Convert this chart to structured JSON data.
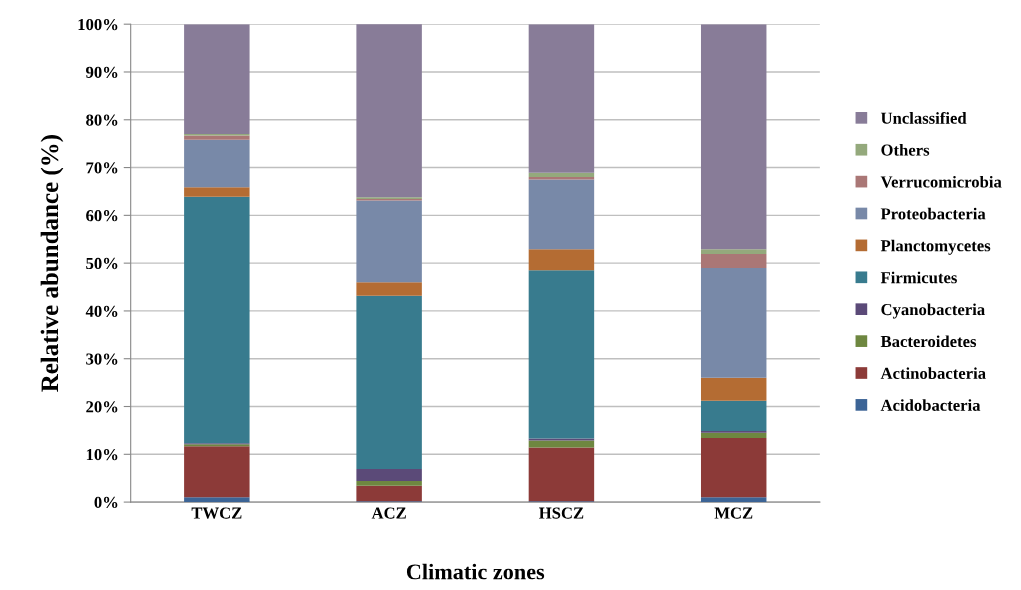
{
  "chart_data": {
    "type": "bar",
    "stacked": true,
    "xlabel": "Climatic zones",
    "ylabel": "Relative abundance (%)",
    "categories": [
      "TWCZ",
      "ACZ",
      "HSCZ",
      "MCZ"
    ],
    "ylim": [
      0,
      100
    ],
    "yticks": [
      {
        "value": 0,
        "label": "0%"
      },
      {
        "value": 10,
        "label": "10%"
      },
      {
        "value": 20,
        "label": "20%"
      },
      {
        "value": 30,
        "label": "30%"
      },
      {
        "value": 40,
        "label": "40%"
      },
      {
        "value": 50,
        "label": "50%"
      },
      {
        "value": 60,
        "label": "60%"
      },
      {
        "value": 70,
        "label": "70%"
      },
      {
        "value": 80,
        "label": "80%"
      },
      {
        "value": 90,
        "label": "90%"
      },
      {
        "value": 100,
        "label": "100%"
      }
    ],
    "grid": "y",
    "legend": "right",
    "series": [
      {
        "name": "Acidobacteria",
        "color": "#3c6496",
        "values": [
          1.0,
          0.2,
          0.2,
          1.0
        ]
      },
      {
        "name": "Actinobacteria",
        "color": "#8c3a38",
        "values": [
          10.7,
          3.2,
          11.2,
          12.4
        ]
      },
      {
        "name": "Bacteroidetes",
        "color": "#6e8740",
        "values": [
          0.4,
          1.0,
          1.5,
          1.1
        ]
      },
      {
        "name": "Cyanobacteria",
        "color": "#5b4a78",
        "values": [
          0.2,
          2.5,
          0.4,
          0.4
        ]
      },
      {
        "name": "Firmicutes",
        "color": "#387b8e",
        "values": [
          51.6,
          36.3,
          35.2,
          6.3
        ]
      },
      {
        "name": "Planctomycetes",
        "color": "#b46c33",
        "values": [
          2.0,
          2.8,
          4.4,
          4.8
        ]
      },
      {
        "name": "Proteobacteria",
        "color": "#7889a8",
        "values": [
          9.9,
          17.1,
          14.6,
          23.0
        ]
      },
      {
        "name": "Verrucomicrobia",
        "color": "#aa7776",
        "values": [
          0.9,
          0.3,
          0.5,
          2.9
        ]
      },
      {
        "name": "Others",
        "color": "#94a97c",
        "values": [
          0.3,
          0.4,
          0.9,
          1.0
        ]
      },
      {
        "name": "Unclassified",
        "color": "#887c98",
        "values": [
          23.0,
          36.3,
          31.1,
          47.1
        ]
      }
    ]
  }
}
